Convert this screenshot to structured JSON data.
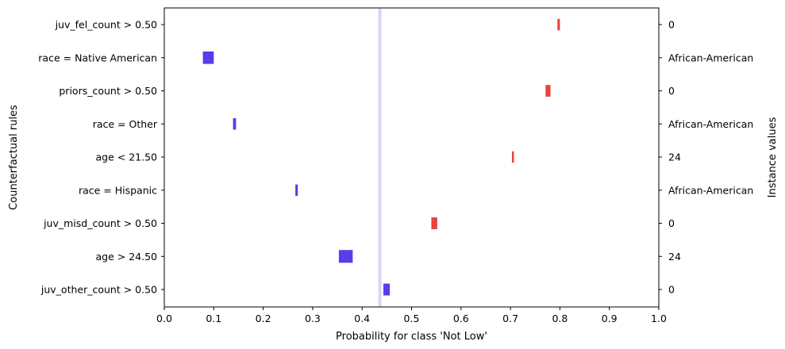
{
  "chart_data": {
    "type": "interval",
    "title": "",
    "xlabel": "Probability for class 'Not Low'",
    "ylabel": "Counterfactual rules",
    "y2label": "Instance values",
    "xlim": [
      0.0,
      1.0
    ],
    "xticks": [
      0.0,
      0.1,
      0.2,
      0.3,
      0.4,
      0.5,
      0.6,
      0.7,
      0.8,
      0.9,
      1.0
    ],
    "xtick_labels": [
      "0.0",
      "0.1",
      "0.2",
      "0.3",
      "0.4",
      "0.5",
      "0.6",
      "0.7",
      "0.8",
      "0.9",
      "1.0"
    ],
    "reference_line": 0.436,
    "rules": [
      {
        "rule": "juv_fel_count > 0.50",
        "instance_value": "0",
        "low": 0.795,
        "high": 0.8,
        "direction": "up"
      },
      {
        "rule": "race = Native American",
        "instance_value": "African-American",
        "low": 0.078,
        "high": 0.1,
        "direction": "down"
      },
      {
        "rule": "priors_count > 0.50",
        "instance_value": "0",
        "low": 0.771,
        "high": 0.781,
        "direction": "up"
      },
      {
        "rule": "race = Other",
        "instance_value": "African-American",
        "low": 0.139,
        "high": 0.145,
        "direction": "down"
      },
      {
        "rule": "age < 21.50",
        "instance_value": "24",
        "low": 0.703,
        "high": 0.706,
        "direction": "up"
      },
      {
        "rule": "race = Hispanic",
        "instance_value": "African-American",
        "low": 0.265,
        "high": 0.27,
        "direction": "down"
      },
      {
        "rule": "juv_misd_count > 0.50",
        "instance_value": "0",
        "low": 0.54,
        "high": 0.552,
        "direction": "up"
      },
      {
        "rule": "age > 24.50",
        "instance_value": "24",
        "low": 0.353,
        "high": 0.381,
        "direction": "down"
      },
      {
        "rule": "juv_other_count > 0.50",
        "instance_value": "0",
        "low": 0.443,
        "high": 0.456,
        "direction": "down"
      }
    ],
    "colors": {
      "up": "#e8443a",
      "down": "#5b3bea",
      "reference": "#d6d4fa"
    }
  }
}
